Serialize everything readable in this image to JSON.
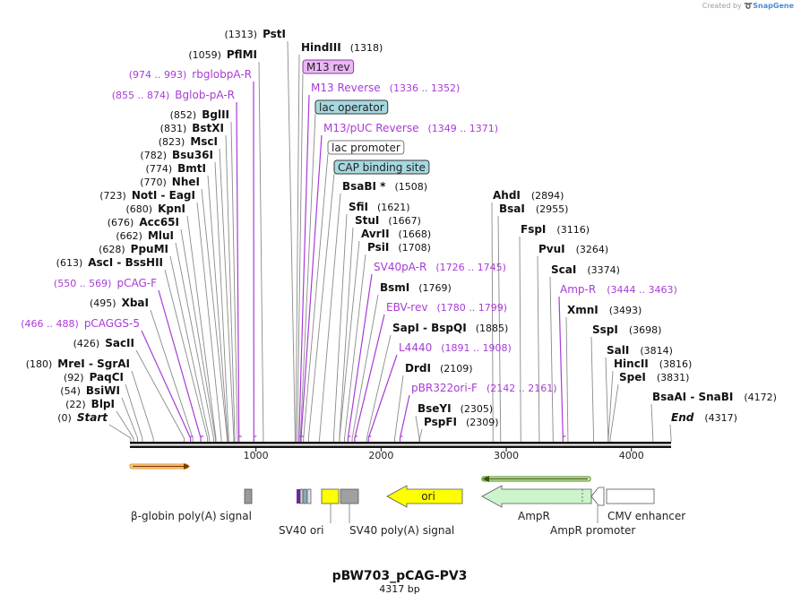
{
  "credit": {
    "prefix": "Created by",
    "brand": "SnapGene"
  },
  "plasmid": {
    "name": "pBW703_pCAG-PV3",
    "length_label": "4317 bp",
    "length": 4317
  },
  "ruler": {
    "ticks": [
      "1000",
      "2000",
      "3000",
      "4000"
    ],
    "tick_values": [
      1000,
      2000,
      3000,
      4000
    ]
  },
  "left_labels": [
    {
      "pos": "(1313)",
      "name": "PstI",
      "kind": "enzyme",
      "at": 1313
    },
    {
      "pos": "(1059)",
      "name": "PflMI",
      "kind": "enzyme",
      "at": 1059
    },
    {
      "pos": "(974 .. 993)",
      "name": "rbglobpA-R",
      "kind": "primer",
      "at": 983
    },
    {
      "pos": "(855 .. 874)",
      "name": "Bglob-pA-R",
      "kind": "primer",
      "at": 864
    },
    {
      "pos": "(852)",
      "name": "BglII",
      "kind": "enzyme",
      "at": 852
    },
    {
      "pos": "(831)",
      "name": "BstXI",
      "kind": "enzyme",
      "at": 831
    },
    {
      "pos": "(823)",
      "name": "MscI",
      "kind": "enzyme",
      "at": 823
    },
    {
      "pos": "(782)",
      "name": "Bsu36I",
      "kind": "enzyme",
      "at": 782
    },
    {
      "pos": "(774)",
      "name": "BmtI",
      "kind": "enzyme",
      "at": 774
    },
    {
      "pos": "(770)",
      "name": "NheI",
      "kind": "enzyme",
      "at": 770
    },
    {
      "pos": "(723)",
      "name": "NotI",
      "name2": "EagI",
      "kind": "enzyme",
      "at": 723
    },
    {
      "pos": "(680)",
      "name": "KpnI",
      "kind": "enzyme",
      "at": 680
    },
    {
      "pos": "(676)",
      "name": "Acc65I",
      "kind": "enzyme",
      "at": 676
    },
    {
      "pos": "(662)",
      "name": "MluI",
      "kind": "enzyme",
      "at": 662
    },
    {
      "pos": "(628)",
      "name": "PpuMI",
      "kind": "enzyme",
      "at": 628
    },
    {
      "pos": "(613)",
      "name": "AscI",
      "name2": "BssHII",
      "kind": "enzyme",
      "at": 613
    },
    {
      "pos": "(550 .. 569)",
      "name": "pCAG-F",
      "kind": "primer",
      "at": 559
    },
    {
      "pos": "(495)",
      "name": "XbaI",
      "kind": "enzyme",
      "at": 495
    },
    {
      "pos": "(466 .. 488)",
      "name": "pCAGGS-5",
      "kind": "primer",
      "at": 477
    },
    {
      "pos": "(426)",
      "name": "SacII",
      "kind": "enzyme",
      "at": 426
    },
    {
      "pos": "(180)",
      "name": "MreI",
      "name2": "SgrAI",
      "kind": "enzyme",
      "at": 180
    },
    {
      "pos": "(92)",
      "name": "PaqCI",
      "kind": "enzyme",
      "at": 92
    },
    {
      "pos": "(54)",
      "name": "BsiWI",
      "kind": "enzyme",
      "at": 54
    },
    {
      "pos": "(22)",
      "name": "BlpI",
      "kind": "enzyme",
      "at": 22
    },
    {
      "pos": "(0)",
      "name": "Start",
      "kind": "end",
      "at": 0
    }
  ],
  "right_labels": [
    {
      "name": "HindIII",
      "pos": "(1318)",
      "kind": "enzyme",
      "at": 1318
    },
    {
      "name": "M13 rev",
      "pos": "",
      "kind": "box",
      "fill": "#e9b8f2",
      "stroke": "#8a3aa8",
      "at": 1330
    },
    {
      "name": "M13 Reverse",
      "pos": "(1336 .. 1352)",
      "kind": "primer",
      "at": 1344
    },
    {
      "name": "lac operator",
      "pos": "",
      "kind": "box",
      "fill": "#a6d8e0",
      "stroke": "#333333",
      "at": 1355
    },
    {
      "name": "M13/pUC Reverse",
      "pos": "(1349 .. 1371)",
      "kind": "primer",
      "at": 1360
    },
    {
      "name": "lac promoter",
      "pos": "",
      "kind": "box",
      "fill": "#ffffff",
      "stroke": "#777777",
      "at": 1380
    },
    {
      "name": "CAP binding site",
      "pos": "",
      "kind": "box",
      "fill": "#a6d8e0",
      "stroke": "#333333",
      "at": 1420
    },
    {
      "name": "BsaBI *",
      "pos": "(1508)",
      "kind": "enzyme",
      "at": 1508
    },
    {
      "name": "SfiI",
      "pos": "(1621)",
      "kind": "enzyme",
      "at": 1621
    },
    {
      "name": "StuI",
      "pos": "(1667)",
      "kind": "enzyme",
      "at": 1667
    },
    {
      "name": "AvrII",
      "pos": "(1668)",
      "kind": "enzyme",
      "at": 1668
    },
    {
      "name": "PsiI",
      "pos": "(1708)",
      "kind": "enzyme",
      "at": 1708
    },
    {
      "name": "SV40pA-R",
      "pos": "(1726 .. 1745)",
      "kind": "primer",
      "at": 1735
    },
    {
      "name": "BsmI",
      "pos": "(1769)",
      "kind": "enzyme",
      "at": 1769
    },
    {
      "name": "EBV-rev",
      "pos": "(1780 .. 1799)",
      "kind": "primer",
      "at": 1789
    },
    {
      "name": "SapI",
      "name2": "BspQI",
      "pos": "(1885)",
      "kind": "enzyme",
      "at": 1885
    },
    {
      "name": "L4440",
      "pos": "(1891 .. 1908)",
      "kind": "primer",
      "at": 1899
    },
    {
      "name": "DrdI",
      "pos": "(2109)",
      "kind": "enzyme",
      "at": 2109
    },
    {
      "name": "pBR322ori-F",
      "pos": "(2142 .. 2161)",
      "kind": "primer",
      "at": 2151
    },
    {
      "name": "BseYI",
      "pos": "(2305)",
      "kind": "enzyme",
      "at": 2305
    },
    {
      "name": "PspFI",
      "pos": "(2309)",
      "kind": "enzyme",
      "at": 2309
    }
  ],
  "far_right_labels": [
    {
      "name": "AhdI",
      "pos": "(2894)",
      "kind": "enzyme",
      "at": 2894
    },
    {
      "name": "BsaI",
      "pos": "(2955)",
      "kind": "enzyme",
      "at": 2955
    },
    {
      "name": "FspI",
      "pos": "(3116)",
      "kind": "enzyme",
      "at": 3116
    },
    {
      "name": "PvuI",
      "pos": "(3264)",
      "kind": "enzyme",
      "at": 3264
    },
    {
      "name": "ScaI",
      "pos": "(3374)",
      "kind": "enzyme",
      "at": 3374
    },
    {
      "name": "Amp-R",
      "pos": "(3444 .. 3463)",
      "kind": "primer",
      "at": 3453
    },
    {
      "name": "XmnI",
      "pos": "(3493)",
      "kind": "enzyme",
      "at": 3493
    },
    {
      "name": "SspI",
      "pos": "(3698)",
      "kind": "enzyme",
      "at": 3698
    },
    {
      "name": "SalI",
      "pos": "(3814)",
      "kind": "enzyme",
      "at": 3814
    },
    {
      "name": "HincII",
      "pos": "(3816)",
      "kind": "enzyme",
      "at": 3816
    },
    {
      "name": "SpeI",
      "pos": "(3831)",
      "kind": "enzyme",
      "at": 3831
    },
    {
      "name": "BsaAI",
      "name2": "SnaBI",
      "pos": "(4172)",
      "kind": "enzyme",
      "at": 4172
    },
    {
      "name": "End",
      "pos": "(4317)",
      "kind": "end",
      "at": 4317
    }
  ],
  "features": {
    "bglobin_label": "β-globin poly(A) signal",
    "sv40ori_label": "SV40 ori",
    "sv40pa_label": "SV40 poly(A) signal",
    "ori_label": "ori",
    "ampr_label": "AmpR",
    "amprprom_label": "AmpR promoter",
    "cmv_label": "CMV enhancer"
  },
  "colors": {
    "primer": "#a83bd6",
    "enzyme_line": "#8a8a8a",
    "ori": "#ffff00",
    "ampr": "#ccf5cc",
    "orf_forward": "#e8912a",
    "orf_reverse": "#4f8a10"
  }
}
